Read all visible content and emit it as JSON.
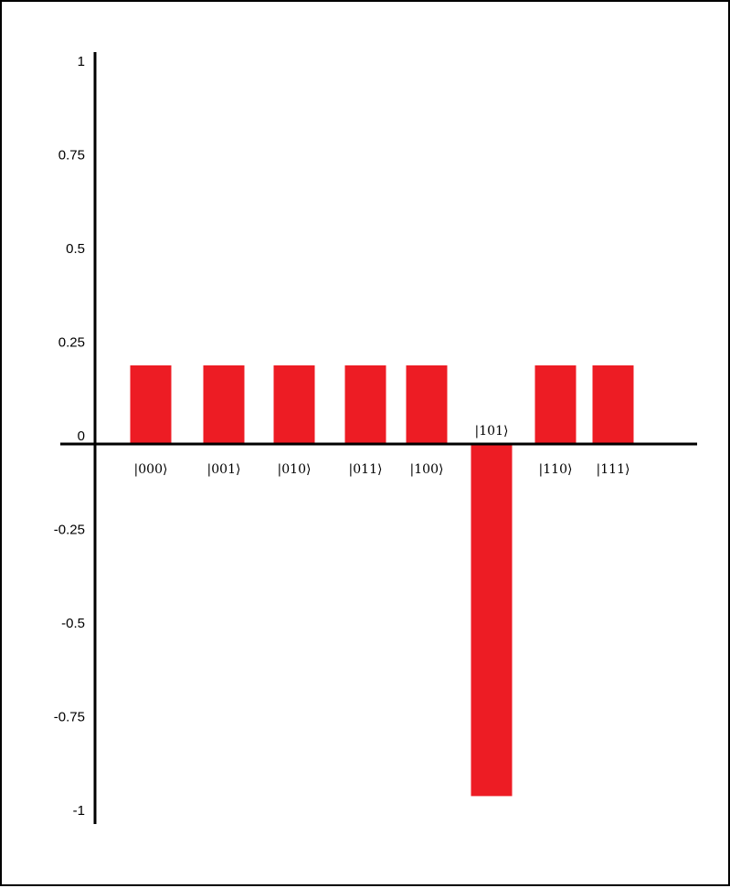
{
  "chart_data": {
    "type": "bar",
    "title": "",
    "xlabel": "",
    "ylabel": "",
    "categories": [
      "|000⟩",
      "|001⟩",
      "|010⟩",
      "|011⟩",
      "|100⟩",
      "|101⟩",
      "|110⟩",
      "|111⟩"
    ],
    "values": [
      0.21,
      0.21,
      0.21,
      0.21,
      0.21,
      -0.94,
      0.21,
      0.21
    ],
    "ylim": [
      -1,
      1
    ],
    "yticks": [
      "1",
      "0.75",
      "0.5",
      "0.25",
      "0",
      "-0.25",
      "-0.5",
      "-0.75",
      "-1"
    ],
    "grid": false,
    "legend": "none",
    "bar_color": "#ed1c24",
    "axis_color": "#000000"
  }
}
